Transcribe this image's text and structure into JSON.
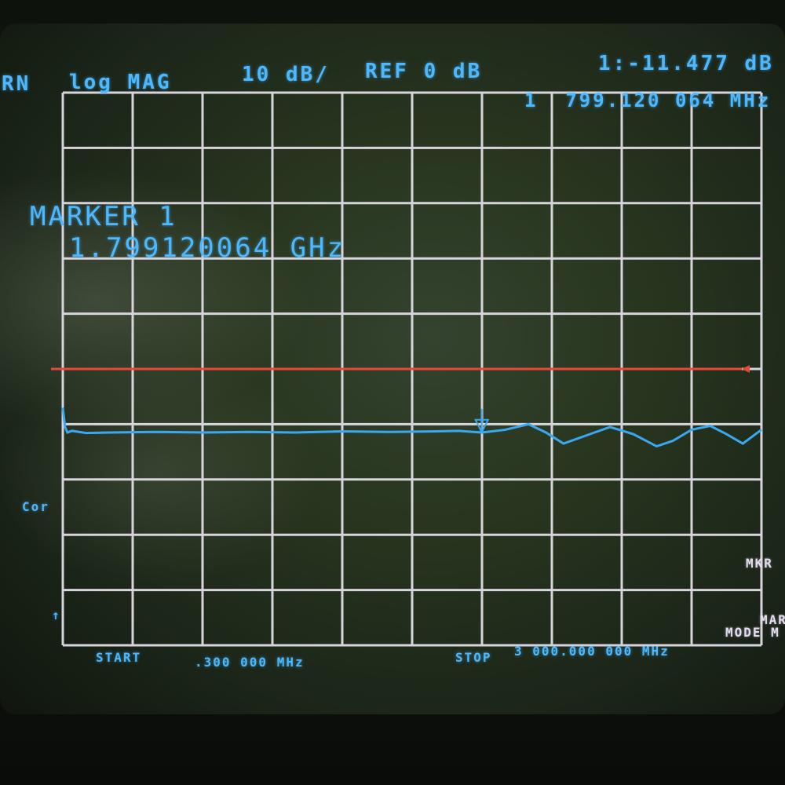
{
  "header": {
    "channel_fragment": "RN",
    "format": "log MAG",
    "scale": "10 dB/",
    "reference": "REF 0 dB",
    "marker_readout_value": "1:-11.477 dB",
    "marker_readout_freq": "1  799.120 064 MHz"
  },
  "marker_box": {
    "title": "MARKER 1",
    "value": "1.799120064 GHz"
  },
  "left_annotations": {
    "cor": "Cor",
    "arrow": "↑"
  },
  "footer": {
    "start_label": "START",
    "start_value": ".300 000 MHz",
    "stop_label": "STOP",
    "stop_value": "3 000.000 000 MHz"
  },
  "softkeys": {
    "mkr": "MKR",
    "marker_mode_1": "MAR",
    "marker_mode_2": "MODE M"
  },
  "colors": {
    "trace": "#3aa8f0",
    "reference_line": "#e8483a",
    "grid": "#d8d4dc",
    "text": "#3aa8f0"
  },
  "chart_data": {
    "type": "line",
    "xlabel": "",
    "ylabel": "",
    "x_unit": "MHz",
    "y_unit": "dB",
    "xlim": [
      0.3,
      3000
    ],
    "ylim": [
      -50,
      50
    ],
    "divisions": {
      "x": 10,
      "y": 10
    },
    "grid": true,
    "reference_level_db": 0,
    "marker": {
      "x": 1799.120064,
      "y": -11.477
    },
    "series": [
      {
        "x": [
          0.3,
          10,
          20,
          40,
          100,
          200,
          400,
          600,
          800,
          1000,
          1200,
          1400,
          1600,
          1700,
          1799,
          1900,
          2000,
          2075,
          2150,
          2250,
          2350,
          2450,
          2550,
          2620,
          2700,
          2780,
          2850,
          2920,
          3000
        ],
        "y": [
          -7,
          -10.5,
          -11.5,
          -11.2,
          -11.6,
          -11.5,
          -11.4,
          -11.5,
          -11.4,
          -11.5,
          -11.3,
          -11.4,
          -11.3,
          -11.2,
          -11.5,
          -11.0,
          -10.0,
          -11.5,
          -13.5,
          -12.0,
          -10.5,
          -11.8,
          -14.0,
          -13.0,
          -11.0,
          -10.3,
          -11.8,
          -13.5,
          -11.0
        ]
      }
    ]
  }
}
